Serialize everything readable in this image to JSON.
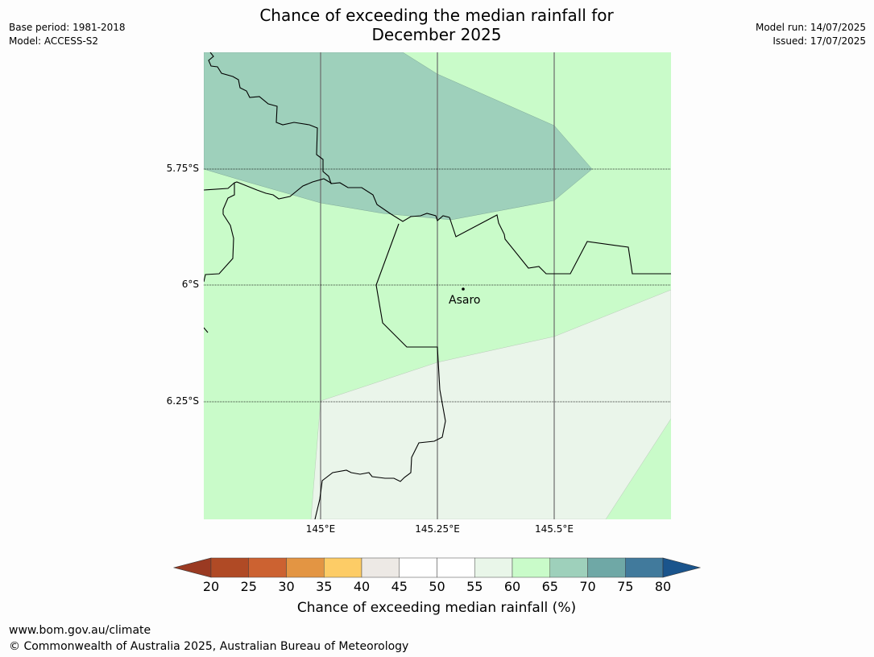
{
  "title_line1": "Chance of exceeding the median rainfall for",
  "title_line2": "December 2025",
  "base_period": "Base period: 1981-2018",
  "model": "Model: ACCESS-S2",
  "model_run": "Model run: 14/07/2025",
  "issued": "Issued: 17/07/2025",
  "map": {
    "lat_labels": [
      "5.75°S",
      "6°S",
      "6.25°S"
    ],
    "lon_labels": [
      "145°E",
      "145.25°E",
      "145.5°E"
    ],
    "place": "Asaro",
    "zones": [
      {
        "class": "65-70",
        "color": "#9ed0bb"
      },
      {
        "class": "60-65",
        "color": "#c9fbc9"
      },
      {
        "class": "55-60",
        "color": "#eaf5ea"
      }
    ]
  },
  "colorbar": {
    "ticks": [
      "20",
      "25",
      "30",
      "35",
      "40",
      "45",
      "50",
      "55",
      "60",
      "65",
      "70",
      "75",
      "80"
    ],
    "colors": [
      "#b04a25",
      "#cc6231",
      "#e39543",
      "#fdcc66",
      "#ede9e5",
      "#ffffff",
      "#ffffff",
      "#e9f6e9",
      "#c9fbc9",
      "#9ed0bb",
      "#6fa8a6",
      "#417a9c"
    ],
    "under_color": "#9a3a22",
    "over_color": "#1a548c",
    "label": "Chance of exceeding median rainfall (%)"
  },
  "footer": {
    "url": "www.bom.gov.au/climate",
    "copyright": "© Commonwealth of Australia 2025, Australian Bureau of Meteorology"
  }
}
